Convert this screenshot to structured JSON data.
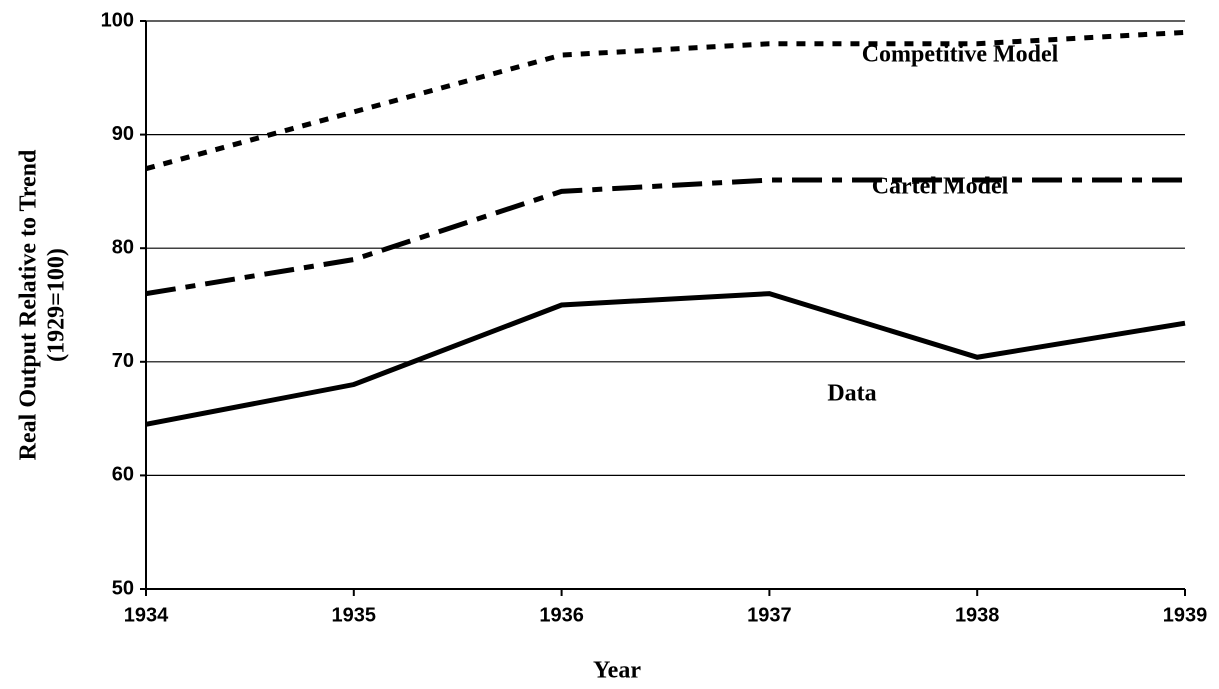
{
  "chart_data": {
    "type": "line",
    "x": [
      1934,
      1935,
      1936,
      1937,
      1938,
      1939
    ],
    "xlim": [
      1934,
      1939
    ],
    "xticks": [
      1934,
      1935,
      1936,
      1937,
      1938,
      1939
    ],
    "ylim": [
      50,
      100
    ],
    "yticks": [
      50,
      60,
      70,
      80,
      90,
      100
    ],
    "x_label": "Year",
    "y_label": [
      "Real Output Relative to Trend",
      "(1929=100)"
    ],
    "grid": true,
    "series": [
      {
        "name": "Competitive Model",
        "color": "#000000",
        "dash": "dotted",
        "values": [
          87,
          92,
          97,
          98,
          98,
          99
        ]
      },
      {
        "name": "Cartel Model",
        "color": "#000000",
        "dash": "dash-dot",
        "values": [
          76,
          79,
          85,
          86,
          86,
          86
        ]
      },
      {
        "name": "Data",
        "color": "#000000",
        "dash": "solid",
        "values": [
          64.5,
          68,
          75,
          76,
          70.4,
          73.4
        ]
      }
    ]
  }
}
